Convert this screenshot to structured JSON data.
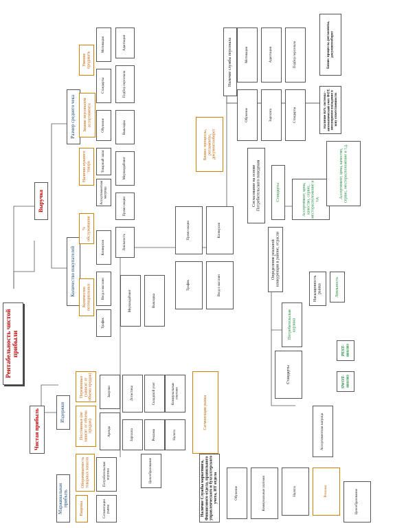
{
  "diagram": {
    "root": "Рентабельность чистой прибыли",
    "level1": {
      "net_profit": "Чистая прибыль",
      "revenue": "Выручка"
    },
    "level2": {
      "marginal_profit": "Маржинальная прибыль",
      "costs": "Издержки",
      "avg_check": "Размер среднего чека",
      "buyers_count": "Количество покупателей"
    },
    "level3": {
      "markup": "Наценка",
      "turnover_profitability": "Оборачиваемость товарных запасов",
      "fixed_costs": "Постоянные (не зависят от объема продаж)",
      "variable_costs": "Переменные (зависят от объема продаж)",
      "goods_availability": "Наличие нужного товара",
      "staff_knowledge": "Знание персоналом ассортимента",
      "sales_skills": "Умение продавать",
      "conversion": "% обслуживания",
      "potential_buyers": "Количество потенциальных"
    },
    "notes": {
      "mgmt_accounting": "Наличие Службы маркетинга, Финансового отдела, правильного управленческого и бухгалтерского учета, ИТ отдела",
      "personnel": "Наличие службы персонала",
      "hr_note1": "Наличие КРЕ системы - автоматический учет ФОТ, неоспоримое вхождение в зону ответственности",
      "hr_note2": "Бизнес процессы, регламенты, документооборот",
      "marketing_coord": "Согласование на основе Потребительского поведения",
      "segment": "Определение реальной конкуренции в районе, отрасли",
      "swot": "SWOT-анализ",
      "pest": "PEST-анализ",
      "assortment": "Ассортимент, цена, качество, сервис, месторасположение и т.д.",
      "competition": "Насыщенность рынка"
    },
    "small": {
      "a1": "Сегментация рынка",
      "a2": "Потребительская корзина",
      "a3": "Ассортиментная матрица",
      "a4": "Ценообразование",
      "a5": "Закупки",
      "a6": "Логистика",
      "a7": "Складской учет",
      "a8": "Товарный запас",
      "a9": "Аренда",
      "a10": "Зарплата",
      "a11": "Реклама",
      "a12": "Налоги",
      "a13": "Коммунальные платежи",
      "a14": "Обучение",
      "a15": "Мотивация",
      "a16": "Адаптация",
      "a17": "Подбор персонала",
      "a18": "Стандарты",
      "a19": "Выкладка",
      "a20": "Мерчандайзинг",
      "a21": "Промо-акции",
      "a22": "Лояльность",
      "a23": "Трафик",
      "a24": "Вход в магазин",
      "a25": "Конверсия"
    }
  }
}
